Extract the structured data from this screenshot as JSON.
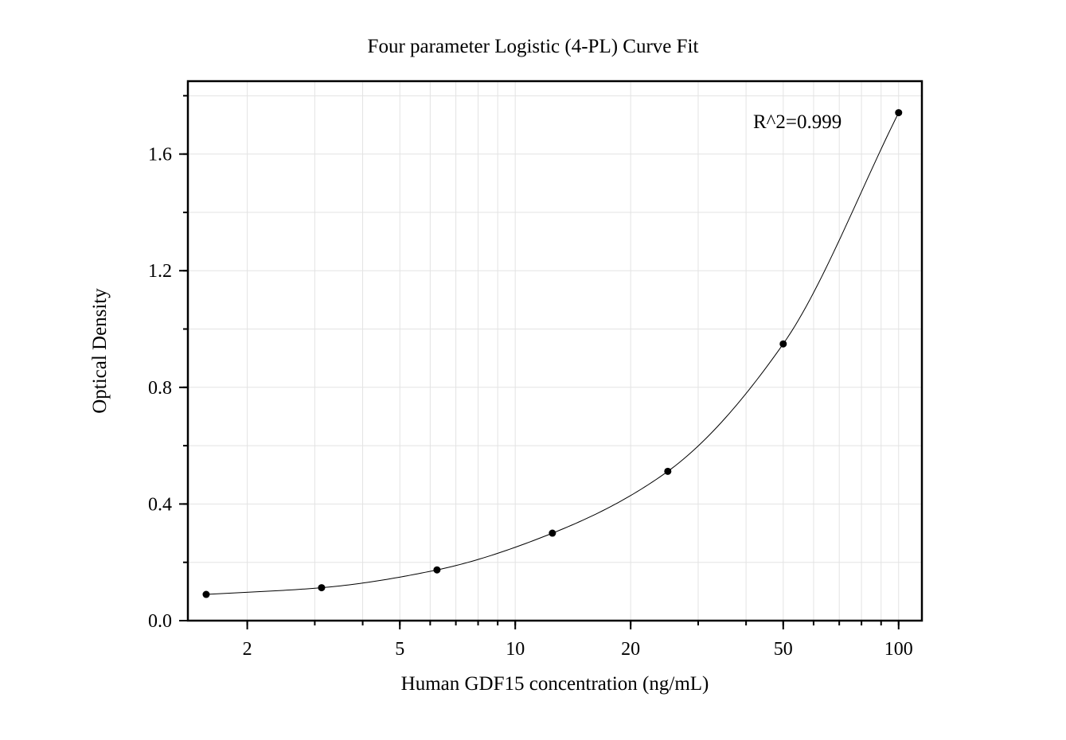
{
  "chart_data": {
    "type": "scatter",
    "title": "Four parameter Logistic (4-PL) Curve Fit",
    "xlabel": "Human GDF15 concentration (ng/mL)",
    "ylabel": "Optical Density",
    "x_scale": "log",
    "xlim": [
      1.4,
      115
    ],
    "ylim": [
      0.0,
      1.85
    ],
    "x_ticks": [
      2,
      5,
      10,
      20,
      50,
      100
    ],
    "x_tick_labels": [
      "2",
      "5",
      "10",
      "20",
      "50",
      "100"
    ],
    "y_ticks": [
      0.0,
      0.4,
      0.8,
      1.2,
      1.6
    ],
    "y_tick_labels": [
      "0.0",
      "0.4",
      "0.8",
      "1.2",
      "1.6"
    ],
    "grid": true,
    "annotation": "R^2=0.999",
    "series": [
      {
        "points": [
          {
            "x": 1.5625,
            "y": 0.09
          },
          {
            "x": 3.125,
            "y": 0.113
          },
          {
            "x": 6.25,
            "y": 0.174
          },
          {
            "x": 12.5,
            "y": 0.3
          },
          {
            "x": 25,
            "y": 0.512
          },
          {
            "x": 50,
            "y": 0.949
          },
          {
            "x": 100,
            "y": 1.742
          }
        ]
      }
    ],
    "point_color": "#000000",
    "curve_color": "#000000"
  }
}
